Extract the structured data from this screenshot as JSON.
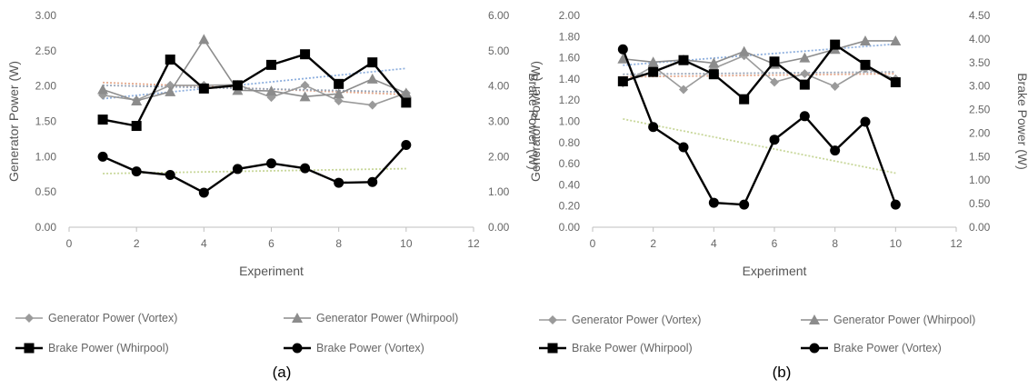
{
  "panels": [
    {
      "label": "(a)",
      "xlabel": "Experiment",
      "ylabel_left": "Generator Power (W)",
      "ylabel_right": "Brake Power (W)"
    },
    {
      "label": "(b)",
      "xlabel": "Experiment",
      "ylabel_left": "Generator Power (W)",
      "ylabel_right": "Brake Power (W)"
    }
  ],
  "colors": {
    "gen_vortex": "#9a9a9a",
    "gen_whirpool": "#8c8c8c",
    "brake": "#000000",
    "trend_gen_vortex": "#e3a88c",
    "trend_gen_whirpool": "#8fb0de",
    "trend_brake_whirpool": "#9aa6b8",
    "trend_brake_vortex": "#c8d79a"
  },
  "chart_data": [
    {
      "type": "line",
      "x": [
        1,
        2,
        3,
        4,
        5,
        6,
        7,
        8,
        9,
        10
      ],
      "xlim": [
        0,
        12
      ],
      "xticks": [
        "0",
        "2",
        "4",
        "6",
        "8",
        "10",
        "12"
      ],
      "ylim_left": [
        0,
        3
      ],
      "yticks_left": [
        "0.00",
        "0.50",
        "1.00",
        "1.50",
        "2.00",
        "2.50",
        "3.00"
      ],
      "ylim_right": [
        0,
        6
      ],
      "yticks_right": [
        "0.00",
        "1.00",
        "2.00",
        "3.00",
        "4.00",
        "5.00",
        "6.00"
      ],
      "grid": false,
      "legend_position": "bottom",
      "series": [
        {
          "name": "Generator Power (Vortex)",
          "axis": "left",
          "marker": "diamond",
          "values": [
            1.87,
            1.8,
            2.01,
            2.01,
            2.02,
            1.84,
            2.01,
            1.79,
            1.73,
            1.9
          ]
        },
        {
          "name": "Generator Power  (Whirpool)",
          "axis": "left",
          "marker": "triangle",
          "values": [
            1.95,
            1.79,
            1.92,
            2.66,
            1.94,
            1.93,
            1.85,
            1.89,
            2.1,
            1.9
          ]
        },
        {
          "name": "Brake Power (Whirpool)",
          "axis": "right",
          "marker": "square",
          "values": [
            3.05,
            2.87,
            4.75,
            3.93,
            4.02,
            4.6,
            4.9,
            4.06,
            4.67,
            3.53
          ]
        },
        {
          "name": "Brake Power (Vortex)",
          "axis": "right",
          "marker": "circle",
          "values": [
            2.0,
            1.58,
            1.48,
            0.98,
            1.65,
            1.81,
            1.67,
            1.26,
            1.28,
            2.33
          ]
        }
      ],
      "trendlines": [
        {
          "of": "Generator Power (Vortex)",
          "axis": "left",
          "from": [
            1,
            2.05
          ],
          "to": [
            10,
            1.88
          ]
        },
        {
          "of": "Generator Power  (Whirpool)",
          "axis": "left",
          "from": [
            1,
            1.82
          ],
          "to": [
            10,
            2.25
          ]
        },
        {
          "of": "Brake Power (Whirpool)",
          "axis": "right",
          "from": [
            1,
            4.02
          ],
          "to": [
            10,
            3.83
          ]
        },
        {
          "of": "Brake Power (Vortex)",
          "axis": "right",
          "from": [
            1,
            1.52
          ],
          "to": [
            10,
            1.66
          ]
        }
      ]
    },
    {
      "type": "line",
      "x": [
        1,
        2,
        3,
        4,
        5,
        6,
        7,
        8,
        9,
        10
      ],
      "xlim": [
        0,
        12
      ],
      "xticks": [
        "0",
        "2",
        "4",
        "6",
        "8",
        "10",
        "12"
      ],
      "ylim_left": [
        0,
        2
      ],
      "yticks_left": [
        "0.00",
        "0.20",
        "0.40",
        "0.60",
        "0.80",
        "1.00",
        "1.20",
        "1.40",
        "1.60",
        "1.80",
        "2.00"
      ],
      "ylim_right": [
        0,
        4.5
      ],
      "yticks_right": [
        "0.00",
        "0.50",
        "1.00",
        "1.50",
        "2.00",
        "2.50",
        "3.00",
        "3.50",
        "4.00",
        "4.50"
      ],
      "grid": false,
      "legend_position": "bottom",
      "series": [
        {
          "name": "Generator Power (Vortex)",
          "axis": "left",
          "marker": "diamond",
          "values": [
            1.36,
            1.52,
            1.3,
            1.5,
            1.62,
            1.37,
            1.45,
            1.33,
            1.5,
            1.4
          ]
        },
        {
          "name": "Generator Power  (Whirpool)",
          "axis": "left",
          "marker": "triangle",
          "values": [
            1.59,
            1.56,
            1.58,
            1.55,
            1.66,
            1.54,
            1.6,
            1.68,
            1.76,
            1.76
          ]
        },
        {
          "name": "Brake Power (Whirpool)",
          "axis": "right",
          "marker": "square",
          "values": [
            3.1,
            3.3,
            3.55,
            3.25,
            2.72,
            3.52,
            3.03,
            3.88,
            3.45,
            3.08
          ]
        },
        {
          "name": "Brake Power (Vortex)",
          "axis": "right",
          "marker": "circle",
          "values": [
            3.78,
            2.13,
            1.7,
            0.52,
            0.48,
            1.86,
            2.36,
            1.63,
            2.24,
            0.48
          ]
        }
      ],
      "trendlines": [
        {
          "of": "Generator Power (Vortex)",
          "axis": "left",
          "from": [
            1,
            1.42
          ],
          "to": [
            10,
            1.45
          ]
        },
        {
          "of": "Generator Power  (Whirpool)",
          "axis": "left",
          "from": [
            1,
            1.53
          ],
          "to": [
            10,
            1.73
          ]
        },
        {
          "of": "Brake Power (Whirpool)",
          "axis": "right",
          "from": [
            1,
            3.25
          ],
          "to": [
            10,
            3.3
          ]
        },
        {
          "of": "Brake Power (Vortex)",
          "axis": "right",
          "from": [
            1,
            2.3
          ],
          "to": [
            10,
            1.15
          ]
        }
      ]
    }
  ]
}
